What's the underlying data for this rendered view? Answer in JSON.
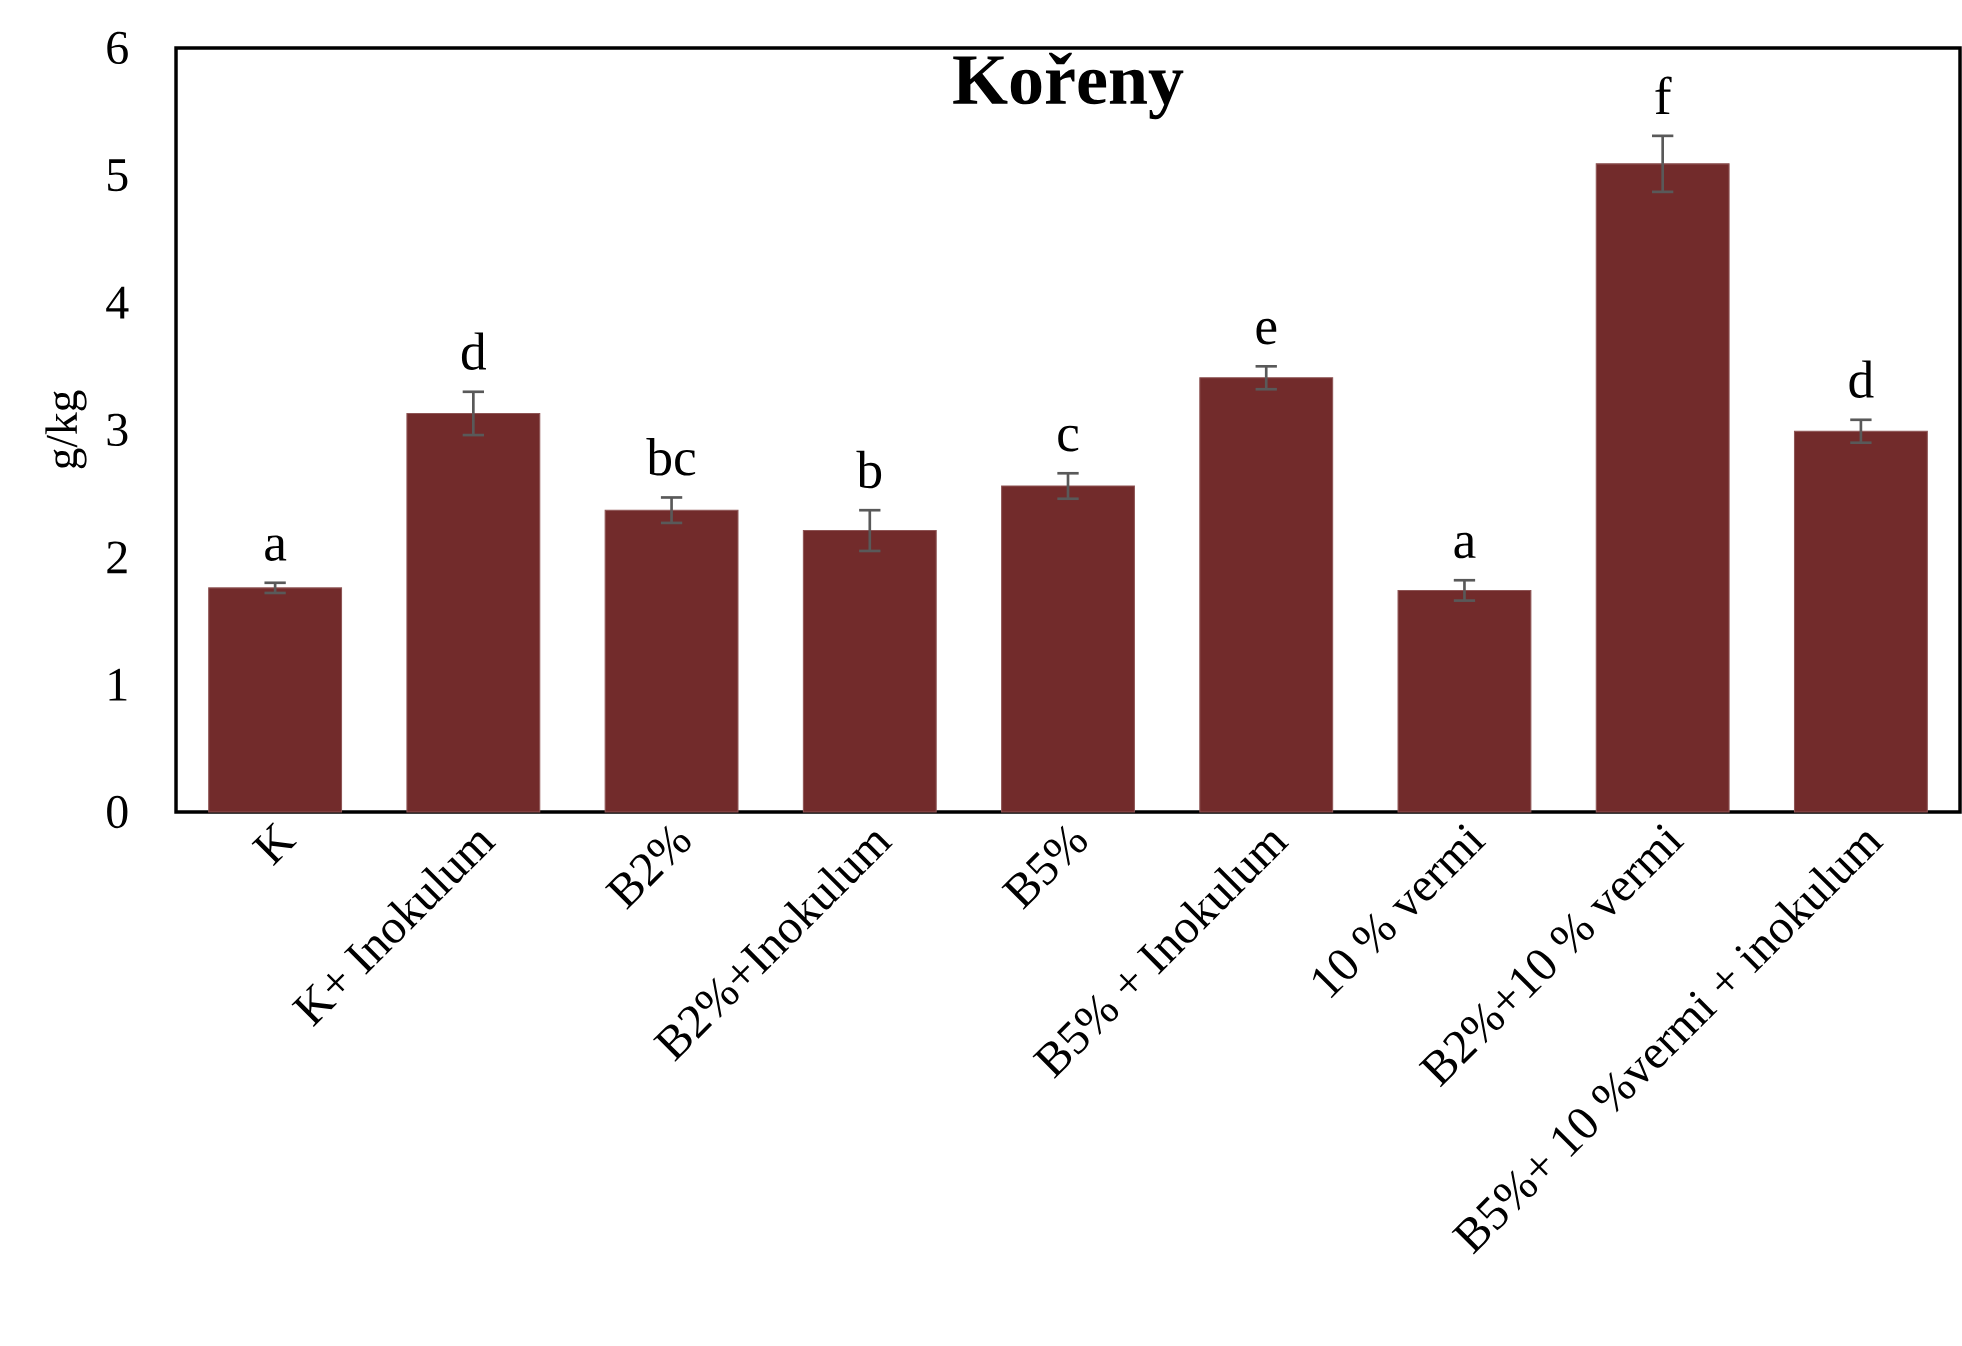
{
  "chart_data": {
    "type": "bar",
    "title": "**Kořeny**",
    "ylabel": "g/kg",
    "categories": [
      "K",
      "K+ Inokulum",
      "B2%",
      "B2%+Inokulum",
      "B5%",
      "B5% + Inokulum",
      "10 % vermi",
      "B2%+10 % vermi",
      "B5%+ 10 %vermi + inokulum"
    ],
    "values": [
      1.76,
      3.13,
      2.37,
      2.21,
      2.56,
      3.41,
      1.74,
      5.09,
      2.99
    ],
    "errors": [
      0.04,
      0.17,
      0.1,
      0.16,
      0.1,
      0.09,
      0.08,
      0.22,
      0.09
    ],
    "color": "#722b2b",
    "ylim": [
      0,
      6
    ],
    "yticks": [
      0,
      1,
      2,
      3,
      4,
      5,
      6
    ],
    "grid": false,
    "annotations": [
      {
        "text": "a",
        "x": "K",
        "y": 1.8
      },
      {
        "text": "d",
        "x": "K+ Inokulum",
        "y": 3.3
      },
      {
        "text": "bc",
        "x": "B2%",
        "y": 2.47
      },
      {
        "text": "b",
        "x": "B2%+Inokulum",
        "y": 2.37
      },
      {
        "text": "c",
        "x": "B5%",
        "y": 2.66
      },
      {
        "text": "e",
        "x": "B5% + Inokulum",
        "y": 3.5
      },
      {
        "text": "a",
        "x": "10 % vermi",
        "y": 1.82
      },
      {
        "text": "f",
        "x": "B2%+10 % vermi",
        "y": 5.31
      },
      {
        "text": "d",
        "x": "B5%+ 10 %vermi + inokulum",
        "y": 3.08
      }
    ]
  }
}
